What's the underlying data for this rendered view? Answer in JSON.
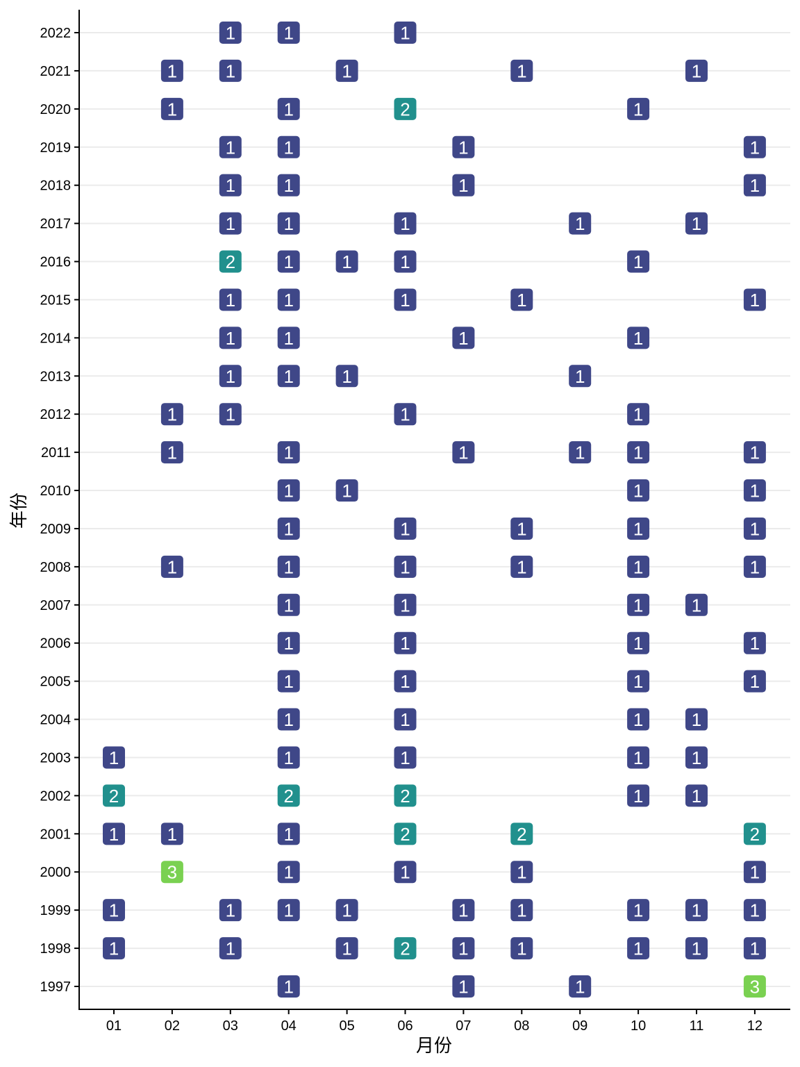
{
  "chart_data": {
    "type": "heatmap",
    "title": "",
    "xlabel": "月份",
    "ylabel": "年份",
    "x_categories": [
      "01",
      "02",
      "03",
      "04",
      "05",
      "06",
      "07",
      "08",
      "09",
      "10",
      "11",
      "12"
    ],
    "y_categories": [
      "1997",
      "1998",
      "1999",
      "2000",
      "2001",
      "2002",
      "2003",
      "2004",
      "2005",
      "2006",
      "2007",
      "2008",
      "2009",
      "2010",
      "2011",
      "2012",
      "2013",
      "2014",
      "2015",
      "2016",
      "2017",
      "2018",
      "2019",
      "2020",
      "2021",
      "2022"
    ],
    "color_scale": {
      "1": "#3f4788",
      "2": "#21908d",
      "3": "#7ad151"
    },
    "grid": "horizontal",
    "cells": [
      {
        "year": "2022",
        "month": "03",
        "value": 1
      },
      {
        "year": "2022",
        "month": "04",
        "value": 1
      },
      {
        "year": "2022",
        "month": "06",
        "value": 1
      },
      {
        "year": "2021",
        "month": "02",
        "value": 1
      },
      {
        "year": "2021",
        "month": "03",
        "value": 1
      },
      {
        "year": "2021",
        "month": "05",
        "value": 1
      },
      {
        "year": "2021",
        "month": "08",
        "value": 1
      },
      {
        "year": "2021",
        "month": "11",
        "value": 1
      },
      {
        "year": "2020",
        "month": "02",
        "value": 1
      },
      {
        "year": "2020",
        "month": "04",
        "value": 1
      },
      {
        "year": "2020",
        "month": "06",
        "value": 2
      },
      {
        "year": "2020",
        "month": "10",
        "value": 1
      },
      {
        "year": "2019",
        "month": "03",
        "value": 1
      },
      {
        "year": "2019",
        "month": "04",
        "value": 1
      },
      {
        "year": "2019",
        "month": "07",
        "value": 1
      },
      {
        "year": "2019",
        "month": "12",
        "value": 1
      },
      {
        "year": "2018",
        "month": "03",
        "value": 1
      },
      {
        "year": "2018",
        "month": "04",
        "value": 1
      },
      {
        "year": "2018",
        "month": "07",
        "value": 1
      },
      {
        "year": "2018",
        "month": "12",
        "value": 1
      },
      {
        "year": "2017",
        "month": "03",
        "value": 1
      },
      {
        "year": "2017",
        "month": "04",
        "value": 1
      },
      {
        "year": "2017",
        "month": "06",
        "value": 1
      },
      {
        "year": "2017",
        "month": "09",
        "value": 1
      },
      {
        "year": "2017",
        "month": "11",
        "value": 1
      },
      {
        "year": "2016",
        "month": "03",
        "value": 2
      },
      {
        "year": "2016",
        "month": "04",
        "value": 1
      },
      {
        "year": "2016",
        "month": "05",
        "value": 1
      },
      {
        "year": "2016",
        "month": "06",
        "value": 1
      },
      {
        "year": "2016",
        "month": "10",
        "value": 1
      },
      {
        "year": "2015",
        "month": "03",
        "value": 1
      },
      {
        "year": "2015",
        "month": "04",
        "value": 1
      },
      {
        "year": "2015",
        "month": "06",
        "value": 1
      },
      {
        "year": "2015",
        "month": "08",
        "value": 1
      },
      {
        "year": "2015",
        "month": "12",
        "value": 1
      },
      {
        "year": "2014",
        "month": "03",
        "value": 1
      },
      {
        "year": "2014",
        "month": "04",
        "value": 1
      },
      {
        "year": "2014",
        "month": "07",
        "value": 1
      },
      {
        "year": "2014",
        "month": "10",
        "value": 1
      },
      {
        "year": "2013",
        "month": "03",
        "value": 1
      },
      {
        "year": "2013",
        "month": "04",
        "value": 1
      },
      {
        "year": "2013",
        "month": "05",
        "value": 1
      },
      {
        "year": "2013",
        "month": "09",
        "value": 1
      },
      {
        "year": "2012",
        "month": "02",
        "value": 1
      },
      {
        "year": "2012",
        "month": "03",
        "value": 1
      },
      {
        "year": "2012",
        "month": "06",
        "value": 1
      },
      {
        "year": "2012",
        "month": "10",
        "value": 1
      },
      {
        "year": "2011",
        "month": "02",
        "value": 1
      },
      {
        "year": "2011",
        "month": "04",
        "value": 1
      },
      {
        "year": "2011",
        "month": "07",
        "value": 1
      },
      {
        "year": "2011",
        "month": "09",
        "value": 1
      },
      {
        "year": "2011",
        "month": "10",
        "value": 1
      },
      {
        "year": "2011",
        "month": "12",
        "value": 1
      },
      {
        "year": "2010",
        "month": "04",
        "value": 1
      },
      {
        "year": "2010",
        "month": "05",
        "value": 1
      },
      {
        "year": "2010",
        "month": "10",
        "value": 1
      },
      {
        "year": "2010",
        "month": "12",
        "value": 1
      },
      {
        "year": "2009",
        "month": "04",
        "value": 1
      },
      {
        "year": "2009",
        "month": "06",
        "value": 1
      },
      {
        "year": "2009",
        "month": "08",
        "value": 1
      },
      {
        "year": "2009",
        "month": "10",
        "value": 1
      },
      {
        "year": "2009",
        "month": "12",
        "value": 1
      },
      {
        "year": "2008",
        "month": "02",
        "value": 1
      },
      {
        "year": "2008",
        "month": "04",
        "value": 1
      },
      {
        "year": "2008",
        "month": "06",
        "value": 1
      },
      {
        "year": "2008",
        "month": "08",
        "value": 1
      },
      {
        "year": "2008",
        "month": "10",
        "value": 1
      },
      {
        "year": "2008",
        "month": "12",
        "value": 1
      },
      {
        "year": "2007",
        "month": "04",
        "value": 1
      },
      {
        "year": "2007",
        "month": "06",
        "value": 1
      },
      {
        "year": "2007",
        "month": "10",
        "value": 1
      },
      {
        "year": "2007",
        "month": "11",
        "value": 1
      },
      {
        "year": "2006",
        "month": "04",
        "value": 1
      },
      {
        "year": "2006",
        "month": "06",
        "value": 1
      },
      {
        "year": "2006",
        "month": "10",
        "value": 1
      },
      {
        "year": "2006",
        "month": "12",
        "value": 1
      },
      {
        "year": "2005",
        "month": "04",
        "value": 1
      },
      {
        "year": "2005",
        "month": "06",
        "value": 1
      },
      {
        "year": "2005",
        "month": "10",
        "value": 1
      },
      {
        "year": "2005",
        "month": "12",
        "value": 1
      },
      {
        "year": "2004",
        "month": "04",
        "value": 1
      },
      {
        "year": "2004",
        "month": "06",
        "value": 1
      },
      {
        "year": "2004",
        "month": "10",
        "value": 1
      },
      {
        "year": "2004",
        "month": "11",
        "value": 1
      },
      {
        "year": "2003",
        "month": "01",
        "value": 1
      },
      {
        "year": "2003",
        "month": "04",
        "value": 1
      },
      {
        "year": "2003",
        "month": "06",
        "value": 1
      },
      {
        "year": "2003",
        "month": "10",
        "value": 1
      },
      {
        "year": "2003",
        "month": "11",
        "value": 1
      },
      {
        "year": "2002",
        "month": "01",
        "value": 2
      },
      {
        "year": "2002",
        "month": "04",
        "value": 2
      },
      {
        "year": "2002",
        "month": "06",
        "value": 2
      },
      {
        "year": "2002",
        "month": "10",
        "value": 1
      },
      {
        "year": "2002",
        "month": "11",
        "value": 1
      },
      {
        "year": "2001",
        "month": "01",
        "value": 1
      },
      {
        "year": "2001",
        "month": "02",
        "value": 1
      },
      {
        "year": "2001",
        "month": "04",
        "value": 1
      },
      {
        "year": "2001",
        "month": "06",
        "value": 2
      },
      {
        "year": "2001",
        "month": "08",
        "value": 2
      },
      {
        "year": "2001",
        "month": "12",
        "value": 2
      },
      {
        "year": "2000",
        "month": "02",
        "value": 3
      },
      {
        "year": "2000",
        "month": "04",
        "value": 1
      },
      {
        "year": "2000",
        "month": "06",
        "value": 1
      },
      {
        "year": "2000",
        "month": "08",
        "value": 1
      },
      {
        "year": "2000",
        "month": "12",
        "value": 1
      },
      {
        "year": "1999",
        "month": "01",
        "value": 1
      },
      {
        "year": "1999",
        "month": "03",
        "value": 1
      },
      {
        "year": "1999",
        "month": "04",
        "value": 1
      },
      {
        "year": "1999",
        "month": "05",
        "value": 1
      },
      {
        "year": "1999",
        "month": "07",
        "value": 1
      },
      {
        "year": "1999",
        "month": "08",
        "value": 1
      },
      {
        "year": "1999",
        "month": "10",
        "value": 1
      },
      {
        "year": "1999",
        "month": "11",
        "value": 1
      },
      {
        "year": "1999",
        "month": "12",
        "value": 1
      },
      {
        "year": "1998",
        "month": "01",
        "value": 1
      },
      {
        "year": "1998",
        "month": "03",
        "value": 1
      },
      {
        "year": "1998",
        "month": "05",
        "value": 1
      },
      {
        "year": "1998",
        "month": "06",
        "value": 2
      },
      {
        "year": "1998",
        "month": "07",
        "value": 1
      },
      {
        "year": "1998",
        "month": "08",
        "value": 1
      },
      {
        "year": "1998",
        "month": "10",
        "value": 1
      },
      {
        "year": "1998",
        "month": "11",
        "value": 1
      },
      {
        "year": "1998",
        "month": "12",
        "value": 1
      },
      {
        "year": "1997",
        "month": "04",
        "value": 1
      },
      {
        "year": "1997",
        "month": "07",
        "value": 1
      },
      {
        "year": "1997",
        "month": "09",
        "value": 1
      },
      {
        "year": "1997",
        "month": "12",
        "value": 3
      }
    ]
  }
}
